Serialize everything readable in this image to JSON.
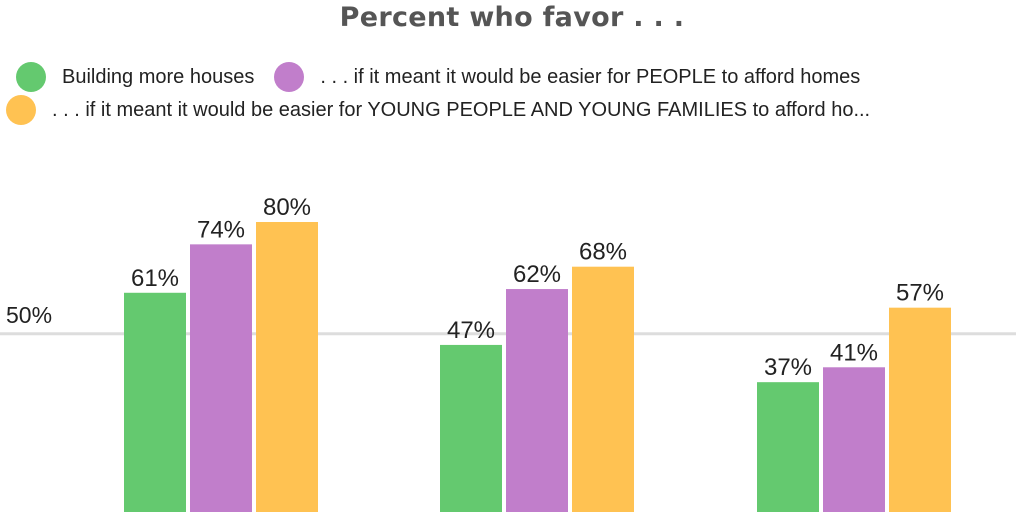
{
  "chart_data": {
    "type": "bar",
    "title": "Percent who favor . . .",
    "series": [
      {
        "name": "Building more houses",
        "color": "#64c96f",
        "values": [
          61,
          47,
          37
        ]
      },
      {
        "name": ". . . if it meant it would be easier for PEOPLE to afford homes",
        "color": "#c17ecb",
        "values": [
          74,
          62,
          41
        ]
      },
      {
        "name": ". . . if it meant it would be easier for YOUNG PEOPLE AND YOUNG FAMILIES to afford ho...",
        "color": "#ffc252",
        "values": [
          80,
          68,
          57
        ]
      }
    ],
    "value_suffix": "%",
    "reference_line": {
      "value": 50,
      "label": "50%"
    },
    "grid": false,
    "legend_position": "top"
  }
}
